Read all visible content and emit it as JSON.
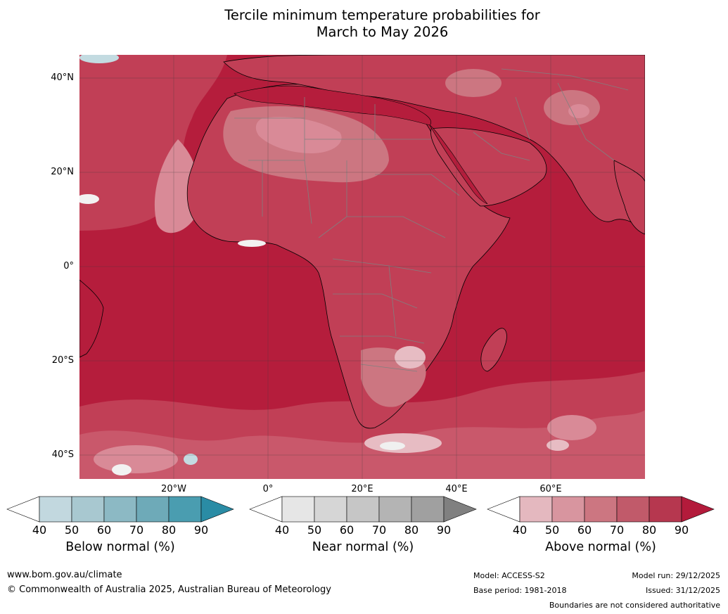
{
  "title": {
    "line1": "Tercile minimum temperature probabilities for",
    "line2": "March to May 2026"
  },
  "map": {
    "lat_labels": [
      "40°N",
      "20°N",
      "0°",
      "20°S",
      "40°S"
    ],
    "lon_labels": [
      "20°W",
      "0°",
      "20°E",
      "40°E",
      "60°E"
    ]
  },
  "colorbars": {
    "below": {
      "label": "Below normal (%)",
      "ticks": [
        "40",
        "50",
        "60",
        "70",
        "80",
        "90"
      ],
      "colors": [
        "#ffffff",
        "#c2d8df",
        "#a8c8d0",
        "#8cb9c4",
        "#6eaab8",
        "#4a9db0",
        "#2a8ca5"
      ]
    },
    "near": {
      "label": "Near normal (%)",
      "ticks": [
        "40",
        "50",
        "60",
        "70",
        "80",
        "90"
      ],
      "colors": [
        "#ffffff",
        "#e6e6e6",
        "#d6d6d6",
        "#c6c6c6",
        "#b4b4b4",
        "#a0a0a0",
        "#808080"
      ]
    },
    "above": {
      "label": "Above normal (%)",
      "ticks": [
        "40",
        "50",
        "60",
        "70",
        "80",
        "90"
      ],
      "colors": [
        "#ffffff",
        "#e4b8bf",
        "#d8959f",
        "#cc7681",
        "#c15a6a",
        "#b6374f",
        "#b31b3b"
      ]
    }
  },
  "footer": {
    "url": "www.bom.gov.au/climate",
    "copyright": "© Commonwealth of Australia 2025, Australian Bureau of Meteorology",
    "model": "Model: ACCESS-S2",
    "base_period": "Base period: 1981-2018",
    "model_run": "Model run: 29/12/2025",
    "issued": "Issued: 31/12/2025",
    "disclaimer": "Boundaries are not considered authoritative"
  },
  "colors": {
    "ocean_base": "#b51d3c",
    "land_base": "#c13f56",
    "light_pink": "#d98a97",
    "pale_pink": "#e7bcc3",
    "ice_blue": "#c3dbe1",
    "grid": "#3a3a3a"
  }
}
